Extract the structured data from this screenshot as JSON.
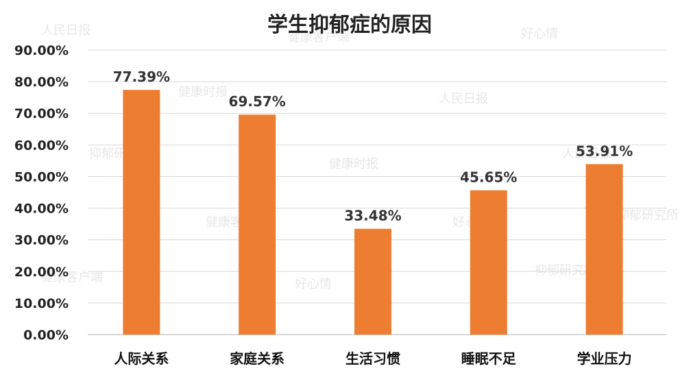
{
  "chart_data": {
    "type": "bar",
    "title": "学生抑郁症的原因",
    "categories": [
      "人际关系",
      "家庭关系",
      "生活习惯",
      "睡眠不足",
      "学业压力"
    ],
    "values": [
      77.39,
      69.57,
      33.48,
      45.65,
      53.91
    ],
    "data_labels": [
      "77.39%",
      "69.57%",
      "33.48%",
      "45.65%",
      "53.91%"
    ],
    "yticks": [
      "0.00%",
      "10.00%",
      "20.00%",
      "30.00%",
      "40.00%",
      "50.00%",
      "60.00%",
      "70.00%",
      "80.00%",
      "90.00%"
    ],
    "ylim": [
      0,
      90
    ],
    "xlabel": "",
    "ylabel": "",
    "grid": true,
    "legend": "none",
    "bar_color": "#ED7D31"
  },
  "watermarks": [
    "人民日报",
    "健康客户端",
    "好心情",
    "抑郁研究所",
    "健康时报"
  ]
}
